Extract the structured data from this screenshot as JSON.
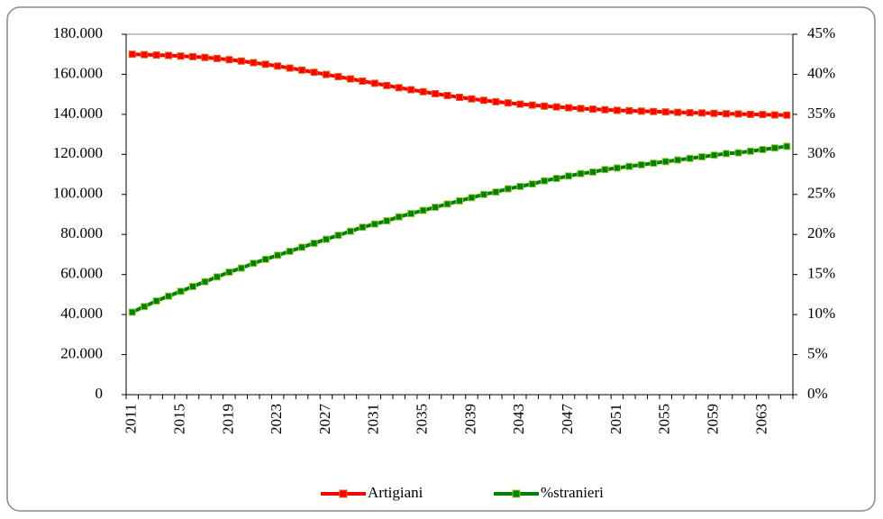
{
  "chart_data": {
    "type": "line",
    "categories": [
      "2011",
      null,
      null,
      null,
      "2015",
      null,
      null,
      null,
      "2019",
      null,
      null,
      null,
      "2023",
      null,
      null,
      null,
      "2027",
      null,
      null,
      null,
      "2031",
      null,
      null,
      null,
      "2035",
      null,
      null,
      null,
      "2039",
      null,
      null,
      null,
      "2043",
      null,
      null,
      null,
      "2047",
      null,
      null,
      null,
      "2051",
      null,
      null,
      null,
      "2055",
      null,
      null,
      null,
      "2059",
      null,
      null,
      null,
      "2063",
      null,
      null
    ],
    "series": [
      {
        "name": "Artigiani",
        "color": "#ff0000",
        "marker_edge": "#e06010",
        "values": [
          170000,
          169800,
          169600,
          169400,
          169100,
          168800,
          168400,
          167900,
          167300,
          166600,
          165800,
          165000,
          164100,
          163100,
          162100,
          161000,
          159900,
          158800,
          157700,
          156600,
          155500,
          154400,
          153300,
          152300,
          151300,
          150300,
          149400,
          148500,
          147700,
          147000,
          146300,
          145700,
          145100,
          144600,
          144100,
          143700,
          143300,
          142900,
          142600,
          142300,
          142000,
          141800,
          141600,
          141400,
          141200,
          141000,
          140800,
          140700,
          140500,
          140300,
          140200,
          140000,
          139900,
          139700,
          139600
        ]
      },
      {
        "name": "%stranieri",
        "color": "#008000",
        "marker_edge": "#9acd32",
        "axis": "y2",
        "values": [
          10.3,
          11.0,
          11.7,
          12.3,
          12.9,
          13.5,
          14.1,
          14.7,
          15.3,
          15.8,
          16.4,
          16.9,
          17.4,
          17.9,
          18.4,
          18.9,
          19.4,
          19.9,
          20.4,
          20.9,
          21.3,
          21.7,
          22.2,
          22.6,
          23.0,
          23.4,
          23.8,
          24.2,
          24.6,
          25.0,
          25.3,
          25.7,
          26.0,
          26.3,
          26.7,
          27.0,
          27.3,
          27.6,
          27.8,
          28.1,
          28.3,
          28.5,
          28.7,
          28.9,
          29.1,
          29.3,
          29.5,
          29.7,
          29.9,
          30.1,
          30.2,
          30.4,
          30.6,
          30.8,
          31.0
        ]
      }
    ],
    "ylim": [
      0,
      180000
    ],
    "yticks": [
      {
        "value": 0,
        "label": "0"
      },
      {
        "value": 20000,
        "label": "20.000"
      },
      {
        "value": 40000,
        "label": "40.000"
      },
      {
        "value": 60000,
        "label": "60.000"
      },
      {
        "value": 80000,
        "label": "80.000"
      },
      {
        "value": 100000,
        "label": "100.000"
      },
      {
        "value": 120000,
        "label": "120.000"
      },
      {
        "value": 140000,
        "label": "140.000"
      },
      {
        "value": 160000,
        "label": "160.000"
      },
      {
        "value": 180000,
        "label": "180.000"
      }
    ],
    "y2lim": [
      0,
      45
    ],
    "y2ticks": [
      {
        "value": 0,
        "label": "0%"
      },
      {
        "value": 5,
        "label": "5%"
      },
      {
        "value": 10,
        "label": "10%"
      },
      {
        "value": 15,
        "label": "15%"
      },
      {
        "value": 20,
        "label": "20%"
      },
      {
        "value": 25,
        "label": "25%"
      },
      {
        "value": 30,
        "label": "30%"
      },
      {
        "value": 35,
        "label": "35%"
      },
      {
        "value": 40,
        "label": "40%"
      },
      {
        "value": 45,
        "label": "45%"
      }
    ],
    "legend": "bottom"
  }
}
